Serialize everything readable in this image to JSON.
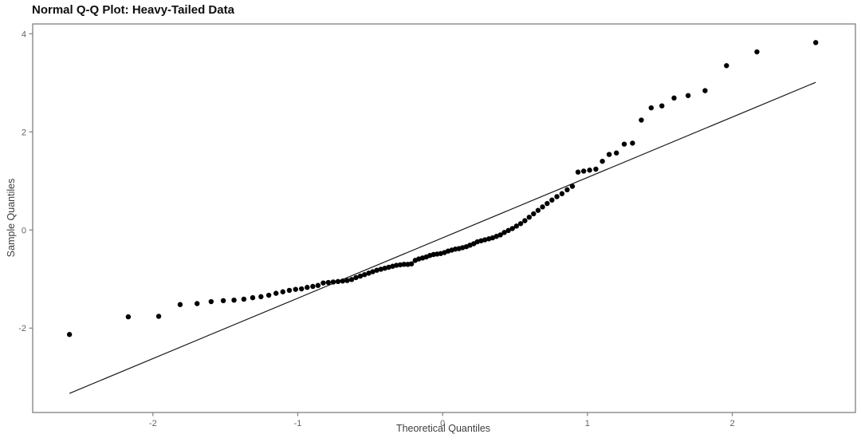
{
  "chart_data": {
    "type": "scatter",
    "subtype": "qq-plot",
    "title": "Normal Q-Q Plot: Heavy-Tailed Data",
    "xlabel": "Theoretical Quantiles",
    "ylabel": "Sample Quantiles",
    "xlim": [
      -2.83,
      2.85
    ],
    "ylim": [
      -3.72,
      4.2
    ],
    "x_ticks": [
      -2,
      -1,
      0,
      1,
      2
    ],
    "y_ticks": [
      -2,
      0,
      2,
      4
    ],
    "grid": false,
    "legend": null,
    "n_points": 100,
    "colors": {
      "point": "#000000",
      "reference_line": "#1a1a1a",
      "frame": "#808080",
      "tick_label": "#636363",
      "axis_label": "#3d3d3d",
      "title": "#0f0f0f",
      "background": "#ffffff"
    },
    "reference_line": {
      "x1": -2.576,
      "y1": -3.33,
      "x2": 2.576,
      "y2": 3.01
    },
    "points": {
      "x": [
        -2.576,
        -2.17,
        -1.96,
        -1.812,
        -1.695,
        -1.598,
        -1.514,
        -1.44,
        -1.372,
        -1.311,
        -1.254,
        -1.2,
        -1.15,
        -1.103,
        -1.058,
        -1.015,
        -0.974,
        -0.935,
        -0.896,
        -0.86,
        -0.824,
        -0.789,
        -0.755,
        -0.722,
        -0.69,
        -0.659,
        -0.628,
        -0.598,
        -0.568,
        -0.539,
        -0.51,
        -0.482,
        -0.454,
        -0.426,
        -0.399,
        -0.372,
        -0.345,
        -0.319,
        -0.292,
        -0.266,
        -0.24,
        -0.215,
        -0.189,
        -0.164,
        -0.138,
        -0.113,
        -0.088,
        -0.063,
        -0.038,
        -0.013,
        0.013,
        0.038,
        0.063,
        0.088,
        0.113,
        0.138,
        0.164,
        0.189,
        0.215,
        0.24,
        0.266,
        0.292,
        0.319,
        0.345,
        0.372,
        0.399,
        0.426,
        0.454,
        0.482,
        0.51,
        0.539,
        0.568,
        0.598,
        0.628,
        0.659,
        0.69,
        0.722,
        0.755,
        0.789,
        0.824,
        0.86,
        0.896,
        0.935,
        0.974,
        1.015,
        1.058,
        1.103,
        1.15,
        1.2,
        1.254,
        1.311,
        1.372,
        1.44,
        1.514,
        1.598,
        1.695,
        1.812,
        1.96,
        2.17,
        2.576
      ],
      "y": [
        -2.13,
        -1.77,
        -1.76,
        -1.52,
        -1.5,
        -1.46,
        -1.44,
        -1.43,
        -1.41,
        -1.38,
        -1.36,
        -1.33,
        -1.29,
        -1.26,
        -1.23,
        -1.21,
        -1.2,
        -1.17,
        -1.15,
        -1.13,
        -1.08,
        -1.07,
        -1.06,
        -1.05,
        -1.04,
        -1.03,
        -1.01,
        -0.97,
        -0.94,
        -0.91,
        -0.88,
        -0.85,
        -0.82,
        -0.8,
        -0.78,
        -0.76,
        -0.74,
        -0.72,
        -0.71,
        -0.7,
        -0.7,
        -0.69,
        -0.62,
        -0.59,
        -0.57,
        -0.55,
        -0.52,
        -0.5,
        -0.49,
        -0.48,
        -0.46,
        -0.43,
        -0.41,
        -0.39,
        -0.38,
        -0.36,
        -0.34,
        -0.31,
        -0.28,
        -0.24,
        -0.22,
        -0.2,
        -0.18,
        -0.16,
        -0.13,
        -0.1,
        -0.05,
        -0.01,
        0.03,
        0.08,
        0.13,
        0.19,
        0.26,
        0.33,
        0.4,
        0.47,
        0.54,
        0.61,
        0.68,
        0.74,
        0.82,
        0.89,
        1.18,
        1.2,
        1.22,
        1.24,
        1.4,
        1.54,
        1.57,
        1.75,
        1.77,
        2.24,
        2.49,
        2.53,
        2.69,
        2.74,
        2.84,
        3.35,
        3.63,
        3.82
      ]
    }
  }
}
